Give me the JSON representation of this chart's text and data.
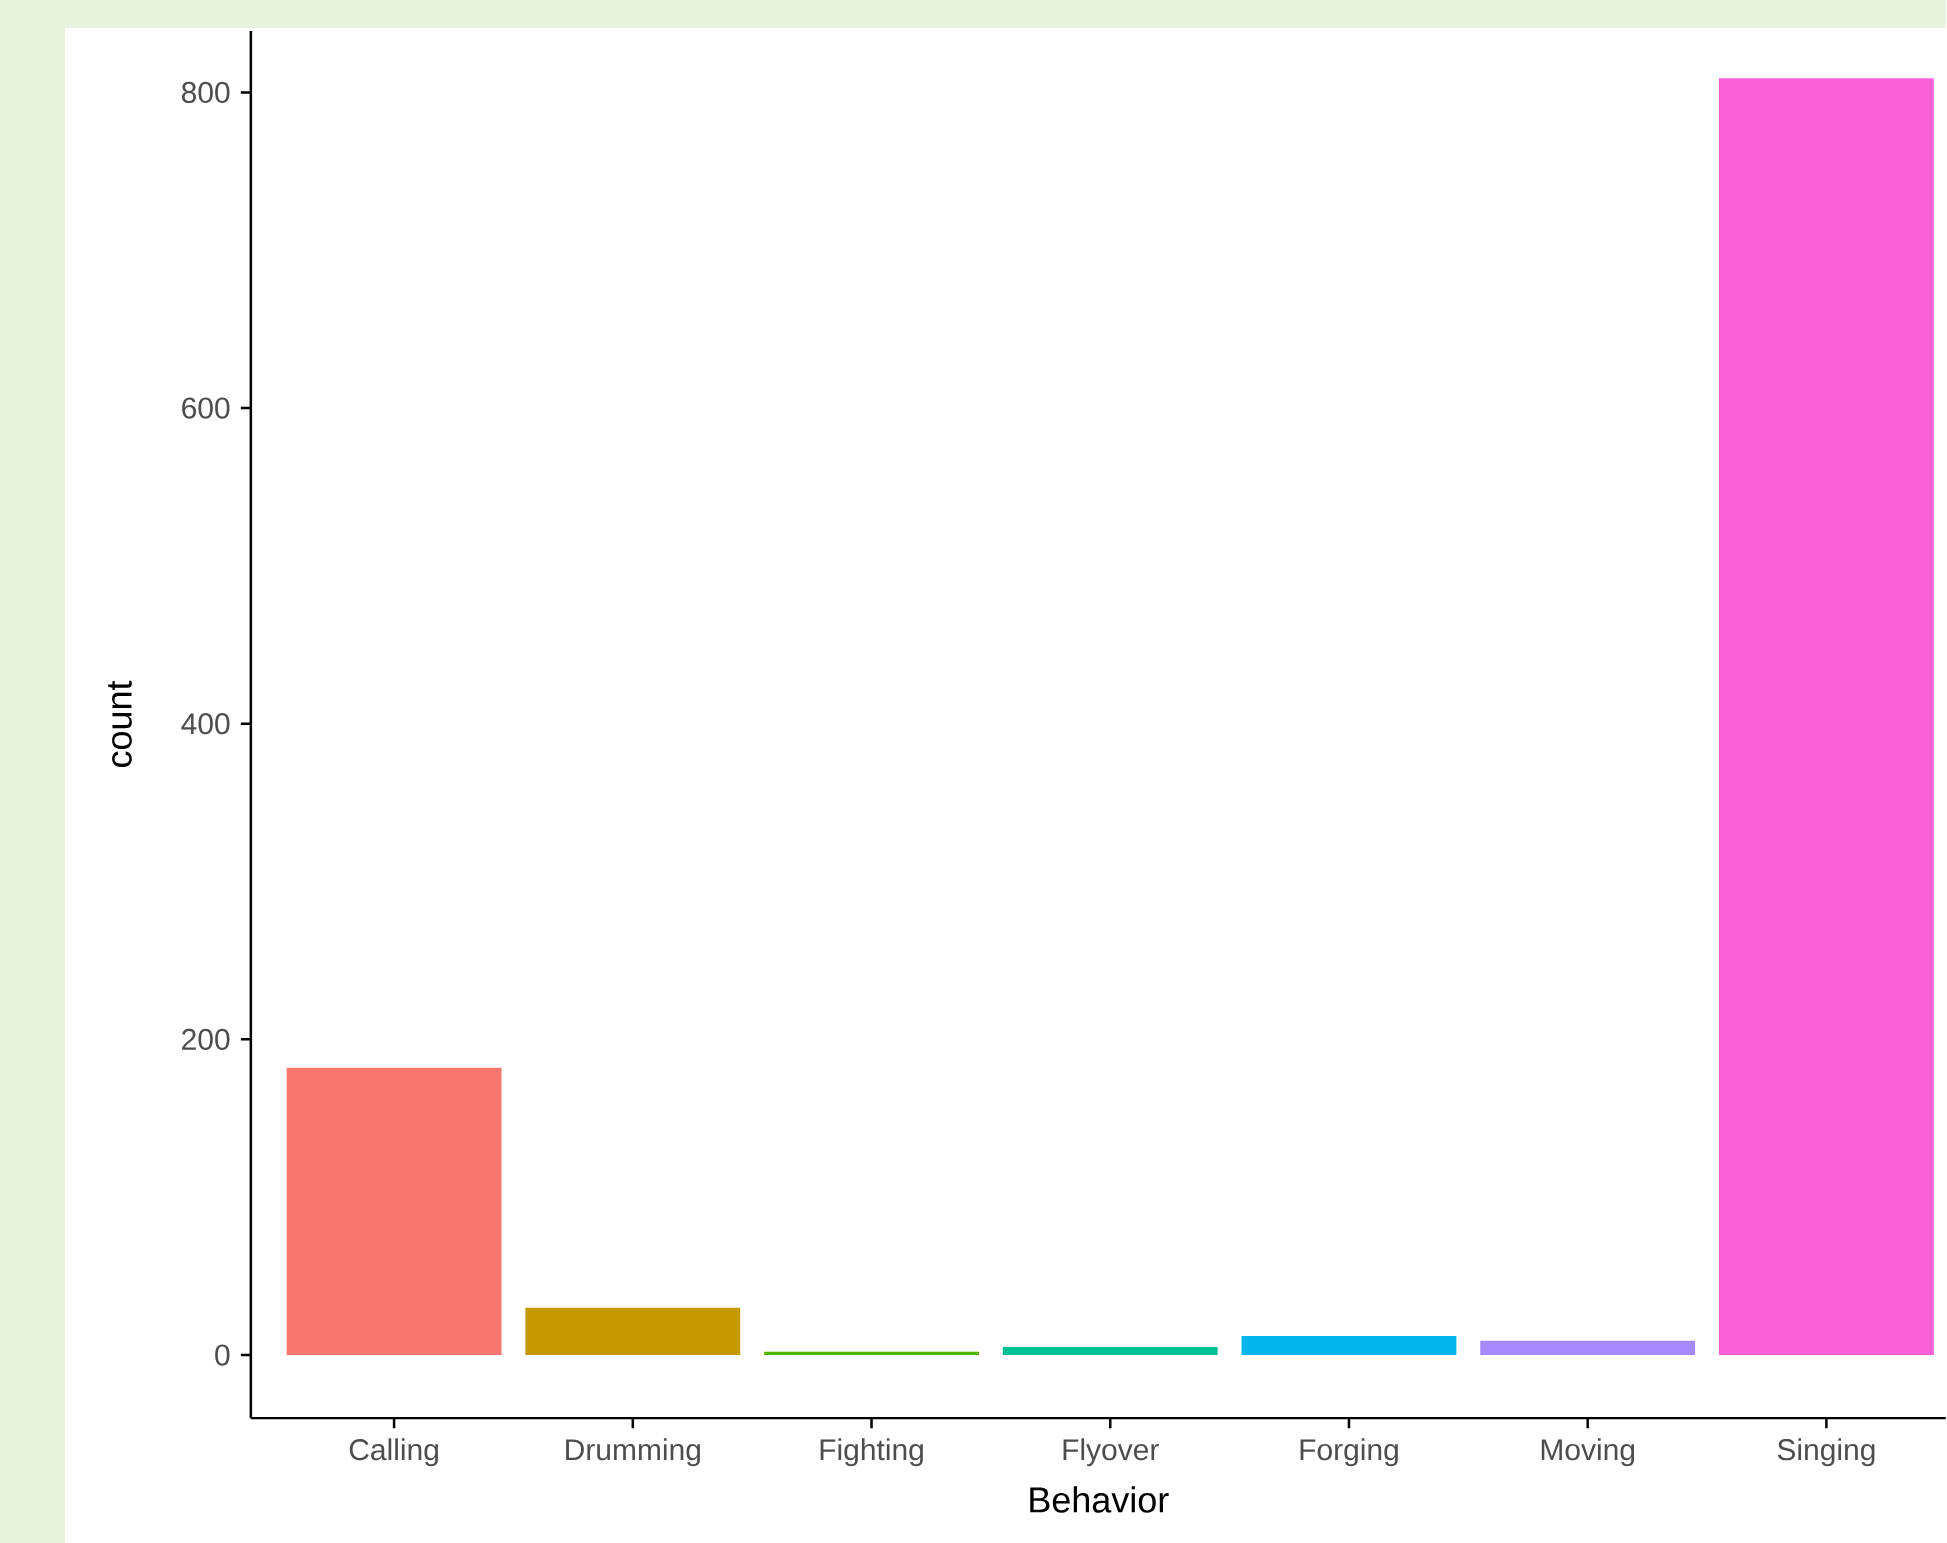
{
  "chart_data": {
    "type": "bar",
    "xlabel": "Behavior",
    "ylabel": "count",
    "categories": [
      "Calling",
      "Drumming",
      "Fighting",
      "Flyover",
      "Forging",
      "Moving",
      "Singing"
    ],
    "values": [
      182,
      30,
      2,
      5,
      12,
      9,
      809
    ],
    "colors": [
      "#f8766d",
      "#c49a00",
      "#53b400",
      "#00c094",
      "#00b6eb",
      "#a58aff",
      "#fb61d7"
    ],
    "ylim": [
      -40,
      839
    ],
    "yticks": [
      0,
      200,
      400,
      600,
      800
    ],
    "grid": false
  }
}
